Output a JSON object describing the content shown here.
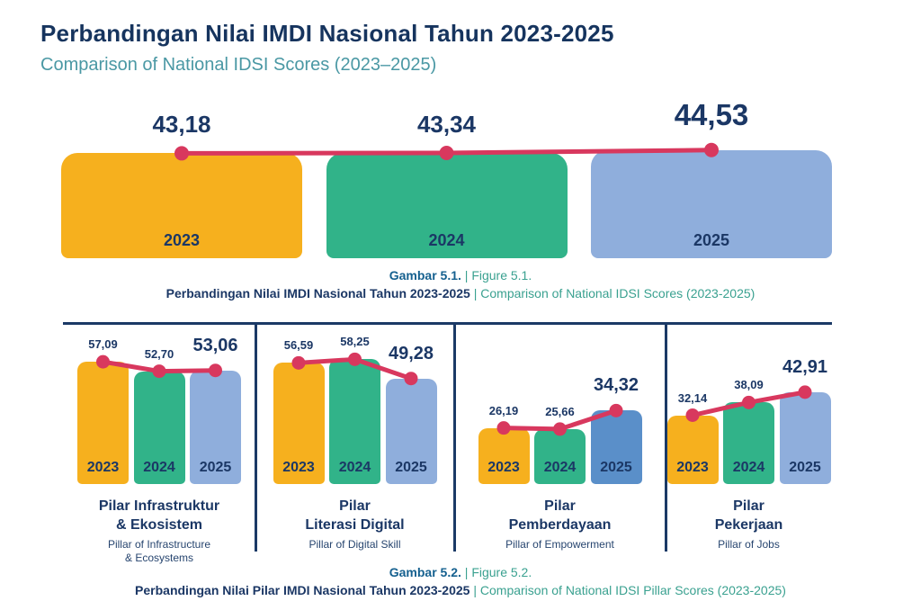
{
  "header": {
    "title_id": "Perbandingan Nilai IMDI Nasional Tahun 2023-2025",
    "title_en": "Comparison of National IDSI Scores (2023–2025)"
  },
  "colors": {
    "navy_text": "#1B3765",
    "title_navy": "#16345E",
    "subtitle_teal": "#4A98A4",
    "caption_teal": "#3AA190",
    "caption_blue": "#15608F",
    "bar_yellow": "#F6B01E",
    "bar_green": "#31B389",
    "bar_blue": "#8FAEDC",
    "bar_blue_highlight": "#5A8FC9",
    "trend_red": "#D8385E",
    "divider_navy": "#1B3A66"
  },
  "chart_data": [
    {
      "type": "bar",
      "name": "national-idsi-score",
      "title": "Perbandingan Nilai IMDI Nasional Tahun 2023-2025",
      "categories": [
        "2023",
        "2024",
        "2025"
      ],
      "values": [
        43.18,
        43.34,
        44.53
      ],
      "value_labels": [
        "43,18",
        "43,34",
        "44,53"
      ],
      "trend_line": true,
      "grid": false,
      "legend": false,
      "ylim": [
        0,
        50
      ]
    },
    {
      "type": "bar",
      "name": "pillar-infrastructure-ecosystem",
      "title_id_lines": [
        "Pilar Infrastruktur",
        "& Ekosistem"
      ],
      "title_en_lines": [
        "Pillar of Infrastructure",
        "& Ecosystems"
      ],
      "categories": [
        "2023",
        "2024",
        "2025"
      ],
      "values": [
        57.09,
        52.7,
        53.06
      ],
      "value_labels": [
        "57,09",
        "52,70",
        "53,06"
      ],
      "trend_line": true,
      "highlight_last": false
    },
    {
      "type": "bar",
      "name": "pillar-digital-literacy",
      "title_id_lines": [
        "Pilar",
        "Literasi Digital"
      ],
      "title_en_lines": [
        "Pillar of Digital Skill"
      ],
      "categories": [
        "2023",
        "2024",
        "2025"
      ],
      "values": [
        56.59,
        58.25,
        49.28
      ],
      "value_labels": [
        "56,59",
        "58,25",
        "49,28"
      ],
      "trend_line": true,
      "highlight_last": false
    },
    {
      "type": "bar",
      "name": "pillar-empowerment",
      "title_id_lines": [
        "Pilar",
        "Pemberdayaan"
      ],
      "title_en_lines": [
        "Pillar of Empowerment"
      ],
      "categories": [
        "2023",
        "2024",
        "2025"
      ],
      "values": [
        26.19,
        25.66,
        34.32
      ],
      "value_labels": [
        "26,19",
        "25,66",
        "34,32"
      ],
      "trend_line": true,
      "highlight_last": true
    },
    {
      "type": "bar",
      "name": "pillar-jobs",
      "title_id_lines": [
        "Pilar",
        "Pekerjaan"
      ],
      "title_en_lines": [
        "Pillar of Jobs"
      ],
      "categories": [
        "2023",
        "2024",
        "2025"
      ],
      "values": [
        32.14,
        38.09,
        42.91
      ],
      "value_labels": [
        "32,14",
        "38,09",
        "42,91"
      ],
      "trend_line": true,
      "highlight_last": false
    }
  ],
  "captions": {
    "fig1": {
      "label_id": "Gambar 5.1.",
      "sep": "|",
      "label_en": "Figure 5.1.",
      "desc_id": "Perbandingan Nilai IMDI Nasional Tahun 2023-2025",
      "desc_en": "Comparison of National IDSI Scores (2023-2025)"
    },
    "fig2": {
      "label_id": "Gambar 5.2.",
      "sep": "|",
      "label_en": "Figure 5.2.",
      "desc_id": "Perbandingan Nilai Pilar IMDI Nasional Tahun 2023-2025",
      "desc_en": "Comparison of National IDSI Pillar Scores (2023-2025)"
    }
  }
}
